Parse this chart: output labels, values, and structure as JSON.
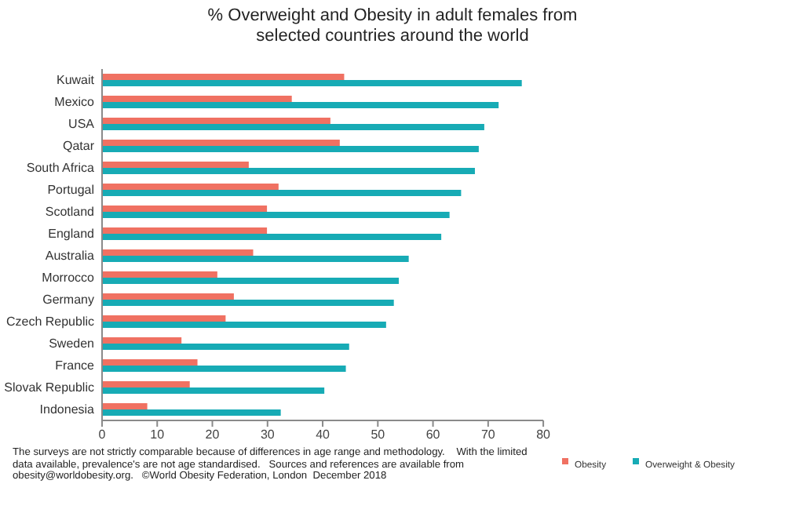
{
  "chart_data": {
    "type": "bar",
    "orientation": "horizontal",
    "title": "% Overweight and Obesity in adult females from selected countries around the world",
    "categories": [
      "Kuwait",
      "Mexico",
      "USA",
      "Qatar",
      "South Africa",
      "Portugal",
      "Scotland",
      "England",
      "Australia",
      "Morrocco",
      "Germany",
      "Czech Republic",
      "Sweden",
      "France",
      "Slovak Republic",
      "Indonesia"
    ],
    "series": [
      {
        "name": "Obesity",
        "color": "#f07162",
        "values": [
          43.9,
          34.4,
          41.4,
          43.1,
          26.6,
          32.0,
          29.9,
          29.9,
          27.4,
          20.9,
          23.9,
          22.4,
          14.4,
          17.3,
          15.9,
          8.2
        ]
      },
      {
        "name": "Overweight & Obesity",
        "color": "#17abb5",
        "values": [
          76.1,
          71.9,
          69.3,
          68.3,
          67.6,
          65.1,
          63.0,
          61.5,
          55.6,
          53.8,
          52.9,
          51.5,
          44.8,
          44.2,
          40.3,
          32.4
        ]
      }
    ],
    "xlim": [
      0,
      80
    ],
    "xticks": [
      0,
      10,
      20,
      30,
      40,
      50,
      60,
      70,
      80
    ],
    "legend": "bottom right",
    "annotations": [
      "The surveys are not strictly comparable because of differences in age range and methodology.    With the limited data available, prevalence's are not age standardised.   Sources and references are available from obesity@worldobesity.org.   ©World Obesity Federation, London  December 2018"
    ]
  }
}
